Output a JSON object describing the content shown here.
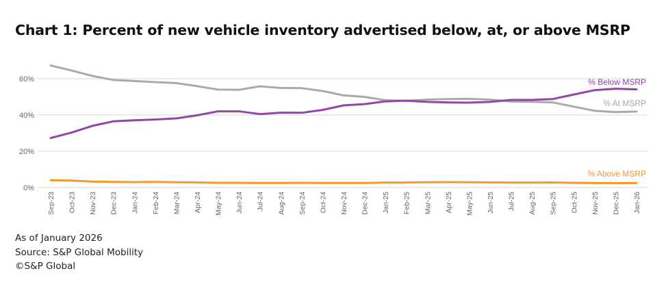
{
  "chart_data": {
    "type": "line",
    "title": "Chart 1: Percent of new vehicle inventory advertised below, at, or above MSRP",
    "xlabel": "",
    "ylabel": "",
    "ylim": [
      0,
      70
    ],
    "yticks": [
      "0%",
      "20%",
      "40%",
      "60%"
    ],
    "ytick_values": [
      0,
      20,
      40,
      60
    ],
    "grid": true,
    "legend": "inline-right",
    "categories": [
      "Sep-23",
      "Oct-23",
      "Nov-23",
      "Dec-23",
      "Jan-24",
      "Feb-24",
      "Mar-24",
      "Apr-24",
      "May-24",
      "Jun-24",
      "Jul-24",
      "Aug-24",
      "Sep-24",
      "Oct-24",
      "Nov-24",
      "Dec-24",
      "Jan-25",
      "Feb-25",
      "Mar-25",
      "Apr-25",
      "May-25",
      "Jun-25",
      "Jul-25",
      "Aug-25",
      "Sep-25",
      "Oct-25",
      "Nov-25",
      "Dec-25",
      "Jan-26"
    ],
    "series": [
      {
        "name": "% Below MSRP",
        "color": "#9146A6",
        "values": [
          27.3,
          30.3,
          34.0,
          36.5,
          37.1,
          37.5,
          38.1,
          39.8,
          42.0,
          42.0,
          40.5,
          41.3,
          41.2,
          42.8,
          45.3,
          46.0,
          47.5,
          47.9,
          47.2,
          46.9,
          46.8,
          47.2,
          48.3,
          48.3,
          48.8,
          51.3,
          53.7,
          54.5,
          54.1
        ]
      },
      {
        "name": "% At MSRP",
        "color": "#AAAAAA",
        "values": [
          67.3,
          64.5,
          61.5,
          59.3,
          58.7,
          58.1,
          57.6,
          55.9,
          54.0,
          53.9,
          55.8,
          54.9,
          54.8,
          53.2,
          50.8,
          50.0,
          48.1,
          47.8,
          48.5,
          48.8,
          48.9,
          48.5,
          47.4,
          47.3,
          46.9,
          44.6,
          42.3,
          41.6,
          41.9
        ]
      },
      {
        "name": "% Above MSRP",
        "color": "#F39A2C",
        "values": [
          4.0,
          3.8,
          3.3,
          3.1,
          3.0,
          3.1,
          2.9,
          2.8,
          2.6,
          2.6,
          2.5,
          2.5,
          2.6,
          2.5,
          2.5,
          2.5,
          2.7,
          2.7,
          2.9,
          3.0,
          2.9,
          2.8,
          2.7,
          2.7,
          2.8,
          2.6,
          2.5,
          2.4,
          2.5
        ]
      }
    ]
  },
  "footer": {
    "as_of": "As of January 2026",
    "source": "Source: S&P Global Mobility",
    "copyright": "©S&P Global"
  }
}
